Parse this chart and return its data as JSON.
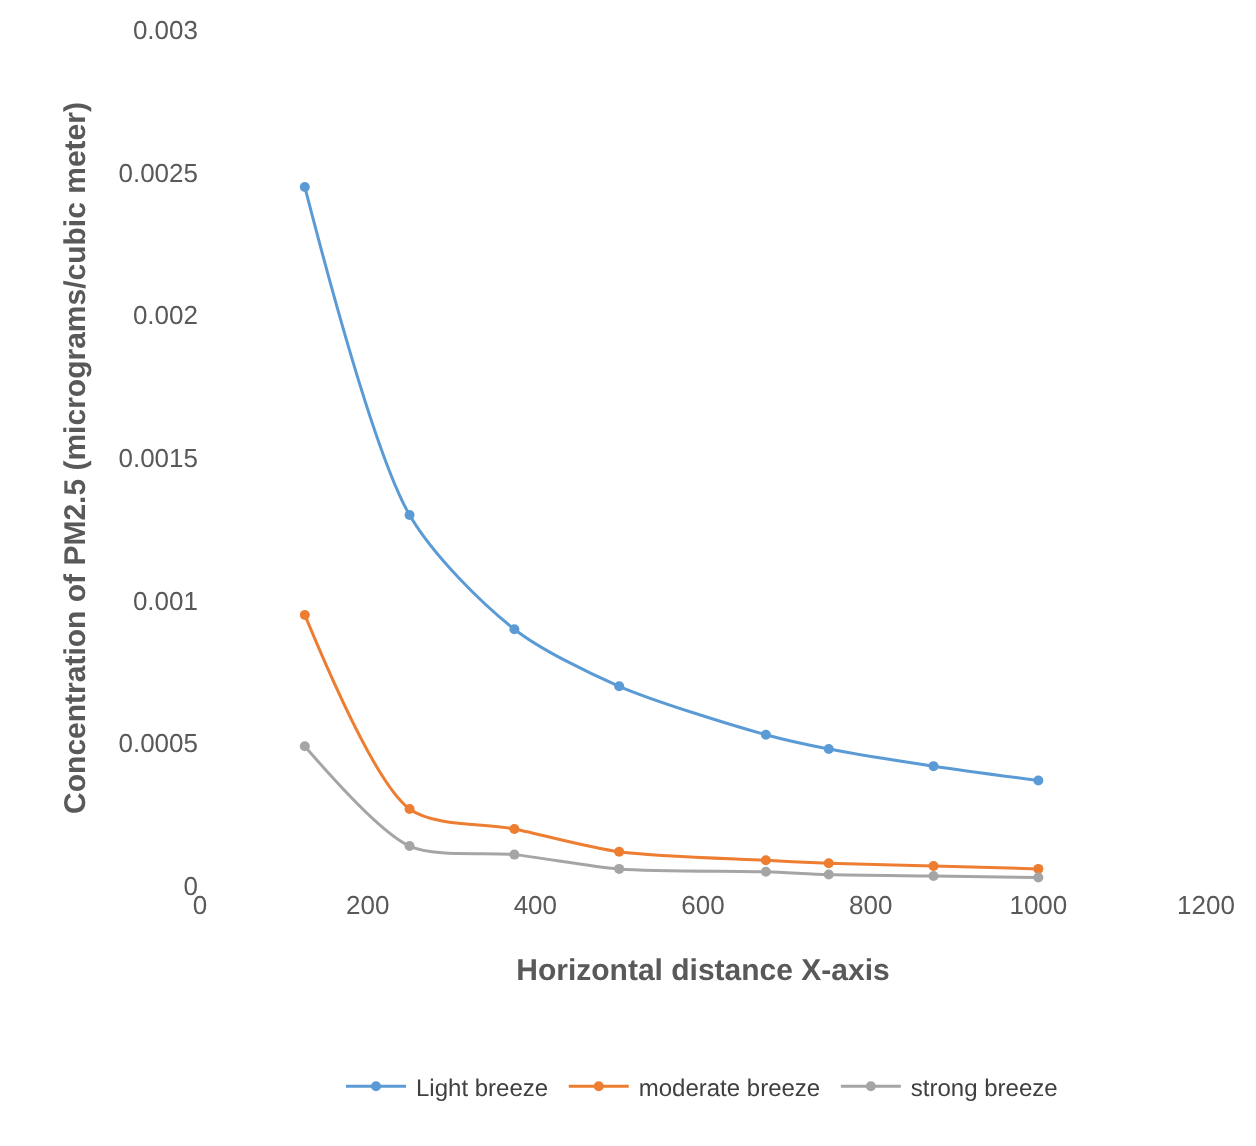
{
  "chart_data": {
    "type": "line",
    "xlabel": "Horizontal distance X-axis",
    "ylabel": "Concentration of PM2.5 (micrograms/cubic meter)",
    "x": [
      125,
      250,
      375,
      500,
      675,
      750,
      875,
      1000
    ],
    "series": [
      {
        "name": "Light breeze",
        "color": "#5b9bd5",
        "values": [
          0.00245,
          0.0013,
          0.0009,
          0.0007,
          0.00053,
          0.00048,
          0.00042,
          0.00037
        ]
      },
      {
        "name": "moderate breeze",
        "color": "#ed7d31",
        "values": [
          0.00095,
          0.00027,
          0.0002,
          0.00012,
          9e-05,
          8e-05,
          7e-05,
          6e-05
        ]
      },
      {
        "name": "strong breeze",
        "color": "#a5a5a5",
        "values": [
          0.00049,
          0.00014,
          0.00011,
          6e-05,
          5e-05,
          4e-05,
          3.5e-05,
          3e-05
        ]
      }
    ],
    "xlim": [
      0,
      1200
    ],
    "xticks": [
      0,
      200,
      400,
      600,
      800,
      1000,
      1200
    ],
    "ylim": [
      0,
      0.003
    ],
    "yticks": [
      0,
      0.0005,
      0.001,
      0.0015,
      0.002,
      0.0025,
      0.003
    ],
    "grid": false,
    "legend": "bottom",
    "marker": "circle",
    "line_style": "solid"
  }
}
